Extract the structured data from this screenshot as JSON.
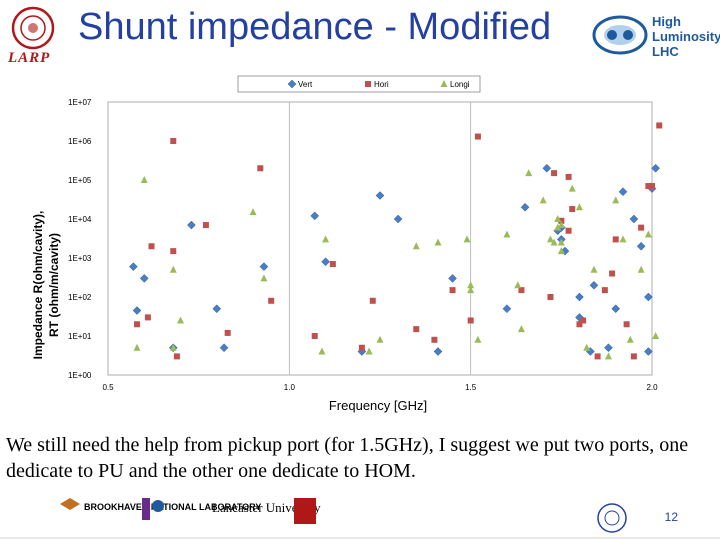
{
  "slide": {
    "title": "Shunt impedance - Modified",
    "larp_label": "LARP",
    "hl_lhc_lines": [
      "High",
      "Luminosity",
      "LHC"
    ],
    "caption": "We still need the help from pickup port (for 1.5GHz), I suggest we put two ports, one dedicate to PU and the other one dedicate to HOM.",
    "page_number": "12",
    "footer_logos": [
      "BROOKHAVEN NATIONAL LABORATORY",
      "Lancaster University"
    ]
  },
  "colors": {
    "title": "#2440a0",
    "vert": "#4a7ec4",
    "hori": "#c0504d",
    "longi": "#9bbb59"
  },
  "chart_data": {
    "type": "scatter",
    "xlabel": "Frequency [GHz]",
    "ylabel": "Impedance R(ohm/cavity), RT (ohm/m/cavity)",
    "y_scale": "log",
    "xlim": [
      0.5,
      2.0
    ],
    "ylim": [
      1,
      10000000
    ],
    "x_ticks": [
      "0.5",
      "1.0",
      "1.5",
      "2.0"
    ],
    "y_ticks": [
      "1E+00",
      "1E+01",
      "1E+02",
      "1E+03",
      "1E+04",
      "1E+05",
      "1E+06",
      "1E+07"
    ],
    "legend_position": "top",
    "grid": "vertical",
    "series": [
      {
        "name": "Vert",
        "marker": "diamond",
        "points": [
          [
            0.57,
            600
          ],
          [
            0.58,
            45
          ],
          [
            0.6,
            300
          ],
          [
            0.68,
            5
          ],
          [
            0.73,
            7000
          ],
          [
            0.8,
            50
          ],
          [
            0.82,
            5
          ],
          [
            0.93,
            600
          ],
          [
            1.07,
            12000
          ],
          [
            1.1,
            800
          ],
          [
            1.2,
            4
          ],
          [
            1.25,
            40000
          ],
          [
            1.3,
            10000
          ],
          [
            1.41,
            4
          ],
          [
            1.45,
            300
          ],
          [
            1.6,
            50
          ],
          [
            1.65,
            20000
          ],
          [
            1.71,
            200000
          ],
          [
            1.74,
            5000
          ],
          [
            1.75,
            6000
          ],
          [
            1.75,
            3000
          ],
          [
            1.76,
            1500
          ],
          [
            1.8,
            100
          ],
          [
            1.8,
            30
          ],
          [
            1.83,
            4
          ],
          [
            1.84,
            200
          ],
          [
            1.88,
            5
          ],
          [
            1.9,
            50
          ],
          [
            1.92,
            50000
          ],
          [
            1.95,
            10000
          ],
          [
            1.97,
            2000
          ],
          [
            1.99,
            100
          ],
          [
            1.99,
            4
          ],
          [
            2.0,
            60000
          ],
          [
            2.01,
            200000
          ]
        ]
      },
      {
        "name": "Hori",
        "marker": "square",
        "points": [
          [
            0.58,
            20
          ],
          [
            0.61,
            30
          ],
          [
            0.62,
            2000
          ],
          [
            0.68,
            1000000
          ],
          [
            0.68,
            1500
          ],
          [
            0.69,
            3
          ],
          [
            0.77,
            7000
          ],
          [
            0.83,
            12
          ],
          [
            0.92,
            200000
          ],
          [
            0.95,
            80
          ],
          [
            1.07,
            10
          ],
          [
            1.12,
            700
          ],
          [
            1.2,
            5
          ],
          [
            1.23,
            80
          ],
          [
            1.35,
            15
          ],
          [
            1.4,
            8
          ],
          [
            1.45,
            150
          ],
          [
            1.5,
            25
          ],
          [
            1.52,
            1300000
          ],
          [
            1.64,
            150
          ],
          [
            1.72,
            100
          ],
          [
            1.73,
            150000
          ],
          [
            1.75,
            9000
          ],
          [
            1.77,
            120000
          ],
          [
            1.77,
            5000
          ],
          [
            1.78,
            18000
          ],
          [
            1.8,
            20
          ],
          [
            1.81,
            25
          ],
          [
            1.85,
            3
          ],
          [
            1.87,
            150
          ],
          [
            1.89,
            400
          ],
          [
            1.9,
            3000
          ],
          [
            1.93,
            20
          ],
          [
            1.95,
            3
          ],
          [
            1.97,
            6000
          ],
          [
            1.99,
            70000
          ],
          [
            2.0,
            70000
          ],
          [
            2.02,
            2500000
          ]
        ]
      },
      {
        "name": "Longi",
        "marker": "triangle",
        "points": [
          [
            0.58,
            5
          ],
          [
            0.6,
            100000
          ],
          [
            0.68,
            500
          ],
          [
            0.68,
            5
          ],
          [
            0.7,
            25
          ],
          [
            0.9,
            15000
          ],
          [
            0.93,
            300
          ],
          [
            1.09,
            4
          ],
          [
            1.1,
            3000
          ],
          [
            1.22,
            4
          ],
          [
            1.25,
            8
          ],
          [
            1.35,
            2000
          ],
          [
            1.41,
            2500
          ],
          [
            1.49,
            3000
          ],
          [
            1.5,
            150
          ],
          [
            1.5,
            200
          ],
          [
            1.52,
            8
          ],
          [
            1.6,
            4000
          ],
          [
            1.63,
            200
          ],
          [
            1.64,
            15
          ],
          [
            1.66,
            150000
          ],
          [
            1.7,
            30000
          ],
          [
            1.72,
            3000
          ],
          [
            1.73,
            2500
          ],
          [
            1.74,
            10000
          ],
          [
            1.74,
            6000
          ],
          [
            1.75,
            7000
          ],
          [
            1.75,
            2500
          ],
          [
            1.75,
            1500
          ],
          [
            1.78,
            60000
          ],
          [
            1.8,
            20000
          ],
          [
            1.82,
            5
          ],
          [
            1.84,
            500
          ],
          [
            1.88,
            3
          ],
          [
            1.9,
            30000
          ],
          [
            1.92,
            3000
          ],
          [
            1.94,
            8
          ],
          [
            1.97,
            500
          ],
          [
            1.99,
            4000
          ],
          [
            2.01,
            10
          ]
        ]
      }
    ]
  }
}
